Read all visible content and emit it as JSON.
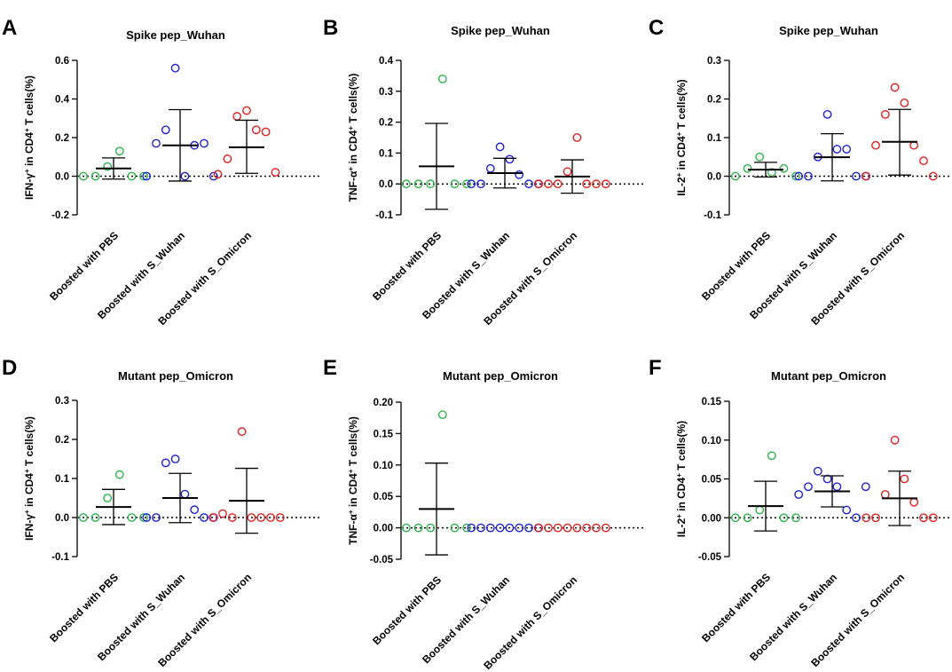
{
  "figure": {
    "categories": [
      "Boosted with PBS",
      "Boosted with S_Wuhan",
      "Boosted with S_Omicron"
    ],
    "series_colors": [
      "#2db34a",
      "#1f1fd6",
      "#e02020"
    ]
  },
  "chart_data": [
    {
      "panel": "A",
      "type": "scatter",
      "title": "Spike pep_Wuhan",
      "ylabel_pre": "IFN-γ",
      "ylabel_sup": "+",
      "ylabel_post": " in CD4",
      "ylabel_sup2": "+",
      "ylabel_end": " T cells(%)",
      "ylim": [
        -0.2,
        0.6
      ],
      "yticks": [
        -0.2,
        0.0,
        0.2,
        0.4,
        0.6
      ],
      "ytick_labels": [
        "-0.2",
        "0.0",
        "0.2",
        "0.4",
        "0.6"
      ],
      "series": [
        {
          "name": "Boosted with PBS",
          "values": [
            0,
            0,
            0.05,
            0.13,
            0,
            0
          ],
          "mean": 0.04,
          "sd_low": -0.015,
          "sd_high": 0.095
        },
        {
          "name": "Boosted with S_Wuhan",
          "values": [
            0,
            0.17,
            0.24,
            0.56,
            0,
            0.16,
            0.17,
            0
          ],
          "mean": 0.16,
          "sd_low": -0.025,
          "sd_high": 0.345
        },
        {
          "name": "Boosted with S_Omicron",
          "values": [
            0.01,
            0.09,
            0.31,
            0.34,
            0.24,
            0.23,
            0.02
          ],
          "mean": 0.15,
          "sd_low": 0.015,
          "sd_high": 0.29
        }
      ]
    },
    {
      "panel": "B",
      "type": "scatter",
      "title": "Spike pep_Wuhan",
      "ylabel_pre": "TNF-α",
      "ylabel_sup": "+",
      "ylabel_post": " in CD4",
      "ylabel_sup2": "+",
      "ylabel_end": " T cells(%)",
      "ylim": [
        -0.1,
        0.4
      ],
      "yticks": [
        -0.1,
        0.0,
        0.1,
        0.2,
        0.3,
        0.4
      ],
      "ytick_labels": [
        "-0.1",
        "0.0",
        "0.1",
        "0.2",
        "0.3",
        "0.4"
      ],
      "series": [
        {
          "name": "Boosted with PBS",
          "values": [
            0,
            0,
            0,
            0.34,
            0,
            0
          ],
          "mean": 0.057,
          "sd_low": -0.082,
          "sd_high": 0.196
        },
        {
          "name": "Boosted with S_Wuhan",
          "values": [
            0,
            0,
            0.05,
            0.12,
            0.08,
            0.03,
            0,
            0
          ],
          "mean": 0.035,
          "sd_low": -0.013,
          "sd_high": 0.083
        },
        {
          "name": "Boosted with S_Omicron",
          "values": [
            0,
            0,
            0,
            0.04,
            0.15,
            0,
            0,
            0
          ],
          "mean": 0.024,
          "sd_low": -0.03,
          "sd_high": 0.078
        }
      ]
    },
    {
      "panel": "C",
      "type": "scatter",
      "title": "Spike pep_Wuhan",
      "ylabel_pre": "IL-2",
      "ylabel_sup": "+",
      "ylabel_post": " in CD4",
      "ylabel_sup2": "+",
      "ylabel_end": " T cells(%)",
      "ylim": [
        -0.1,
        0.3
      ],
      "yticks": [
        -0.1,
        0.0,
        0.1,
        0.2,
        0.3
      ],
      "ytick_labels": [
        "-0.1",
        "0.0",
        "0.1",
        "0.2",
        "0.3"
      ],
      "series": [
        {
          "name": "Boosted with PBS",
          "values": [
            0,
            0.02,
            0.05,
            0.01,
            0.02,
            0
          ],
          "mean": 0.017,
          "sd_low": -0.002,
          "sd_high": 0.036
        },
        {
          "name": "Boosted with S_Wuhan",
          "values": [
            0,
            0,
            0.05,
            0.16,
            0.07,
            0.07,
            0,
            0
          ],
          "mean": 0.049,
          "sd_low": -0.012,
          "sd_high": 0.11
        },
        {
          "name": "Boosted with S_Omicron",
          "values": [
            0,
            0.08,
            0.16,
            0.23,
            0.19,
            0.08,
            0.04,
            0
          ],
          "mean": 0.089,
          "sd_low": 0.003,
          "sd_high": 0.173
        }
      ]
    },
    {
      "panel": "D",
      "type": "scatter",
      "title": "Mutant pep_Omicron",
      "ylabel_pre": "IFN-γ",
      "ylabel_sup": "+",
      "ylabel_post": " in CD4",
      "ylabel_sup2": "+",
      "ylabel_end": " T cells(%)",
      "ylim": [
        -0.1,
        0.3
      ],
      "yticks": [
        -0.1,
        0.0,
        0.1,
        0.2,
        0.3
      ],
      "ytick_labels": [
        "-0.1",
        "0.0",
        "0.1",
        "0.2",
        "0.3"
      ],
      "series": [
        {
          "name": "Boosted with PBS",
          "values": [
            0,
            0,
            0.05,
            0.11,
            0,
            0
          ],
          "mean": 0.027,
          "sd_low": -0.018,
          "sd_high": 0.072
        },
        {
          "name": "Boosted with S_Wuhan",
          "values": [
            0,
            0,
            0.14,
            0.15,
            0.06,
            0.02,
            0,
            0
          ],
          "mean": 0.05,
          "sd_low": -0.013,
          "sd_high": 0.113
        },
        {
          "name": "Boosted with S_Omicron",
          "values": [
            0,
            0.01,
            0,
            0.22,
            0,
            0,
            0,
            0
          ],
          "mean": 0.043,
          "sd_low": -0.04,
          "sd_high": 0.126
        }
      ]
    },
    {
      "panel": "E",
      "type": "scatter",
      "title": "Mutant pep_Omicron",
      "ylabel_pre": "TNF-α",
      "ylabel_sup": "+",
      "ylabel_post": " in CD4",
      "ylabel_sup2": "+",
      "ylabel_end": " T cells(%)",
      "ylim": [
        -0.05,
        0.2
      ],
      "yticks": [
        -0.05,
        0.0,
        0.05,
        0.1,
        0.15,
        0.2
      ],
      "ytick_labels": [
        "-0.05",
        "0.00",
        "0.05",
        "0.10",
        "0.15",
        "0.20"
      ],
      "series": [
        {
          "name": "Boosted with PBS",
          "values": [
            0,
            0,
            0,
            0.18,
            0,
            0
          ],
          "mean": 0.03,
          "sd_low": -0.043,
          "sd_high": 0.103
        },
        {
          "name": "Boosted with S_Wuhan",
          "values": [
            0,
            0,
            0,
            0,
            0,
            0,
            0,
            0
          ],
          "mean": 0.0,
          "sd_low": 0.0,
          "sd_high": 0.0
        },
        {
          "name": "Boosted with S_Omicron",
          "values": [
            0,
            0,
            0,
            0,
            0,
            0,
            0,
            0
          ],
          "mean": 0.0,
          "sd_low": 0.0,
          "sd_high": 0.0
        }
      ]
    },
    {
      "panel": "F",
      "type": "scatter",
      "title": "Mutant pep_Omicron",
      "ylabel_pre": "IL-2",
      "ylabel_sup": "+",
      "ylabel_post": " in CD4",
      "ylabel_sup2": "+",
      "ylabel_end": " T cells(%)",
      "ylim": [
        -0.05,
        0.15
      ],
      "yticks": [
        -0.05,
        0.0,
        0.05,
        0.1,
        0.15
      ],
      "ytick_labels": [
        "-0.05",
        "0.00",
        "0.05",
        "0.10",
        "0.15"
      ],
      "series": [
        {
          "name": "Boosted with PBS",
          "values": [
            0,
            0,
            0.01,
            0.08,
            0,
            0
          ],
          "mean": 0.015,
          "sd_low": -0.017,
          "sd_high": 0.047
        },
        {
          "name": "Boosted with S_Wuhan",
          "values": [
            0.03,
            0.04,
            0.06,
            0.05,
            0.04,
            0.01,
            0,
            0.04
          ],
          "mean": 0.034,
          "sd_low": 0.014,
          "sd_high": 0.054
        },
        {
          "name": "Boosted with S_Omicron",
          "values": [
            0,
            0,
            0.03,
            0.1,
            0.05,
            0.02,
            0,
            0
          ],
          "mean": 0.025,
          "sd_low": -0.01,
          "sd_high": 0.06
        }
      ]
    }
  ]
}
